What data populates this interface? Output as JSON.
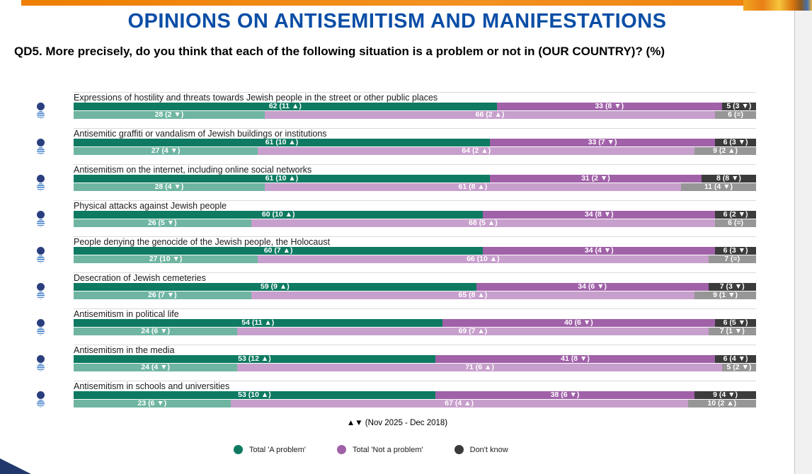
{
  "header": {
    "title": "OPINIONS ON ANTISEMITISM AND MANIFESTATIONS",
    "question": "QD5. More precisely, do you think that each of the following situation is a problem or not in (OUR COUNTRY)? (%)"
  },
  "footer": {
    "change_note": "▲▼ (Nov 2025 - Dec 2018)"
  },
  "legend": {
    "items": [
      {
        "icon": "legend-dot-problem",
        "label": "Total 'A problem'",
        "color": "#0d7a61"
      },
      {
        "icon": "legend-dot-not-problem",
        "label": "Total 'Not a problem'",
        "color": "#a061a8"
      },
      {
        "icon": "legend-dot-dont-know",
        "label": "Don't know",
        "color": "#3b3b3b"
      }
    ]
  },
  "chart_data": {
    "type": "bar",
    "subtype": "stacked-horizontal",
    "unit": "%",
    "xlim": [
      0,
      100
    ],
    "series_labels": [
      "Total 'A problem'",
      "Total 'Not a problem'",
      "Don't know"
    ],
    "row_icons": [
      "eu-flag-icon",
      "country-flag-icon"
    ],
    "row_colors": {
      "row1": [
        "#0d7a61",
        "#a061a8",
        "#3b3b3b"
      ],
      "row2": [
        "#6fb5a2",
        "#c79fcc",
        "#969696"
      ]
    },
    "items": [
      {
        "label": "Expressions of hostility and threats towards Jewish people in the street or other public places",
        "rows": [
          {
            "segments": [
              {
                "value": 62,
                "label": "62 (11 ▲)"
              },
              {
                "value": 33,
                "label": "33 (8 ▼)"
              },
              {
                "value": 5,
                "label": "5 (3 ▼)"
              }
            ]
          },
          {
            "segments": [
              {
                "value": 28,
                "label": "28 (2 ▼)"
              },
              {
                "value": 66,
                "label": "66 (2 ▲)"
              },
              {
                "value": 6,
                "label": "6 (=)"
              }
            ]
          }
        ]
      },
      {
        "label": "Antisemitic graffiti or vandalism of Jewish buildings or institutions",
        "rows": [
          {
            "segments": [
              {
                "value": 61,
                "label": "61 (10 ▲)"
              },
              {
                "value": 33,
                "label": "33 (7 ▼)"
              },
              {
                "value": 6,
                "label": "6 (3 ▼)"
              }
            ]
          },
          {
            "segments": [
              {
                "value": 27,
                "label": "27 (4 ▼)"
              },
              {
                "value": 64,
                "label": "64 (2 ▲)"
              },
              {
                "value": 9,
                "label": "9 (2 ▲)"
              }
            ]
          }
        ]
      },
      {
        "label": "Antisemitism on the internet, including online social networks",
        "rows": [
          {
            "segments": [
              {
                "value": 61,
                "label": "61 (10 ▲)"
              },
              {
                "value": 31,
                "label": "31 (2 ▼)"
              },
              {
                "value": 8,
                "label": "8 (8 ▼)"
              }
            ]
          },
          {
            "segments": [
              {
                "value": 28,
                "label": "28 (4 ▼)"
              },
              {
                "value": 61,
                "label": "61 (8 ▲)"
              },
              {
                "value": 11,
                "label": "11 (4 ▼)"
              }
            ]
          }
        ]
      },
      {
        "label": "Physical attacks against Jewish people",
        "rows": [
          {
            "segments": [
              {
                "value": 60,
                "label": "60 (10 ▲)"
              },
              {
                "value": 34,
                "label": "34 (8 ▼)"
              },
              {
                "value": 6,
                "label": "6 (2 ▼)"
              }
            ]
          },
          {
            "segments": [
              {
                "value": 26,
                "label": "26 (5 ▼)"
              },
              {
                "value": 68,
                "label": "68 (5 ▲)"
              },
              {
                "value": 6,
                "label": "6 (=)"
              }
            ]
          }
        ]
      },
      {
        "label": "People denying the genocide of the Jewish people, the Holocaust",
        "rows": [
          {
            "segments": [
              {
                "value": 60,
                "label": "60 (7 ▲)"
              },
              {
                "value": 34,
                "label": "34 (4 ▼)"
              },
              {
                "value": 6,
                "label": "6 (3 ▼)"
              }
            ]
          },
          {
            "segments": [
              {
                "value": 27,
                "label": "27 (10 ▼)"
              },
              {
                "value": 66,
                "label": "66 (10 ▲)"
              },
              {
                "value": 7,
                "label": "7 (=)"
              }
            ]
          }
        ]
      },
      {
        "label": "Desecration of Jewish cemeteries",
        "rows": [
          {
            "segments": [
              {
                "value": 59,
                "label": "59 (9 ▲)"
              },
              {
                "value": 34,
                "label": "34 (6 ▼)"
              },
              {
                "value": 7,
                "label": "7 (3 ▼)"
              }
            ]
          },
          {
            "segments": [
              {
                "value": 26,
                "label": "26 (7 ▼)"
              },
              {
                "value": 65,
                "label": "65 (8 ▲)"
              },
              {
                "value": 9,
                "label": "9 (1 ▼)"
              }
            ]
          }
        ]
      },
      {
        "label": "Antisemitism in political life",
        "rows": [
          {
            "segments": [
              {
                "value": 54,
                "label": "54 (11 ▲)"
              },
              {
                "value": 40,
                "label": "40 (6 ▼)"
              },
              {
                "value": 6,
                "label": "6 (5 ▼)"
              }
            ]
          },
          {
            "segments": [
              {
                "value": 24,
                "label": "24 (6 ▼)"
              },
              {
                "value": 69,
                "label": "69 (7 ▲)"
              },
              {
                "value": 7,
                "label": "7 (1 ▼)"
              }
            ]
          }
        ]
      },
      {
        "label": "Antisemitism in the media",
        "rows": [
          {
            "segments": [
              {
                "value": 53,
                "label": "53 (12 ▲)"
              },
              {
                "value": 41,
                "label": "41 (8 ▼)"
              },
              {
                "value": 6,
                "label": "6 (4 ▼)"
              }
            ]
          },
          {
            "segments": [
              {
                "value": 24,
                "label": "24 (4 ▼)"
              },
              {
                "value": 71,
                "label": "71 (6 ▲)"
              },
              {
                "value": 5,
                "label": "5 (2 ▼)"
              }
            ]
          }
        ]
      },
      {
        "label": "Antisemitism in schools and universities",
        "rows": [
          {
            "segments": [
              {
                "value": 53,
                "label": "53 (10 ▲)"
              },
              {
                "value": 38,
                "label": "38 (6 ▼)"
              },
              {
                "value": 9,
                "label": "9 (4 ▼)"
              }
            ]
          },
          {
            "segments": [
              {
                "value": 23,
                "label": "23 (6 ▼)"
              },
              {
                "value": 67,
                "label": "67 (4 ▲)"
              },
              {
                "value": 10,
                "label": "10 (2 ▲)"
              }
            ]
          }
        ]
      }
    ]
  }
}
